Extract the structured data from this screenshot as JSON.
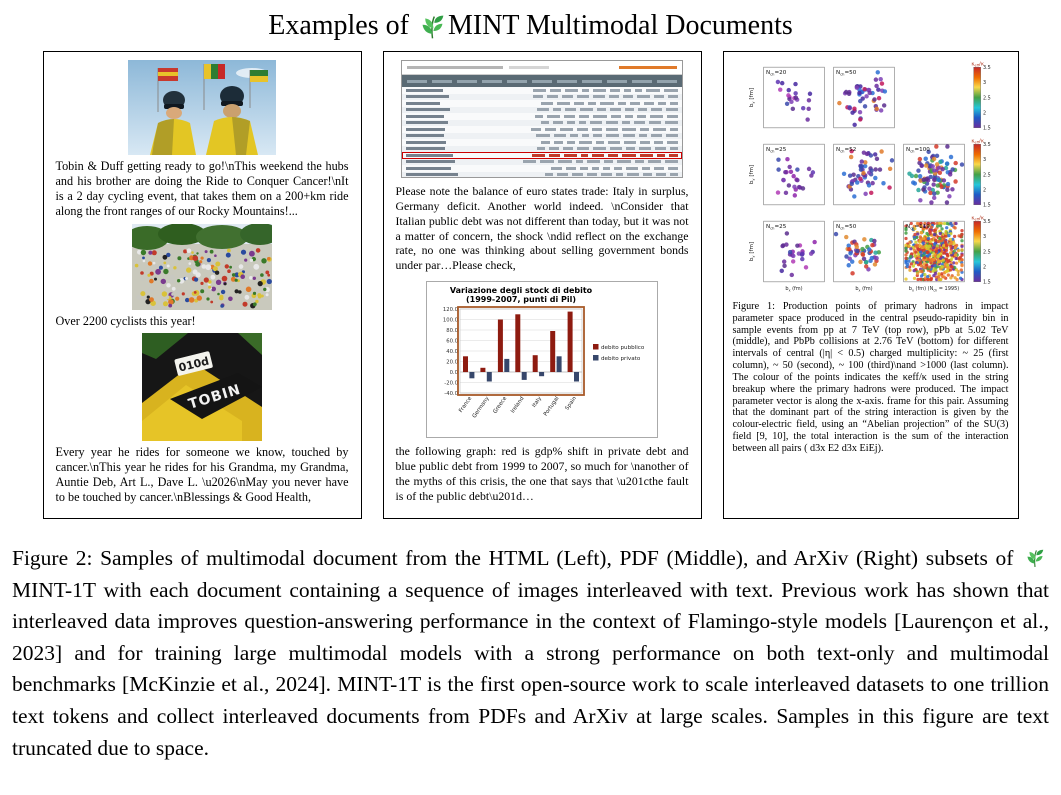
{
  "page_title": {
    "prefix": "Examples of",
    "suffix": "MINT Multimodal Documents"
  },
  "html_panel": {
    "block1": "Tobin & Duff getting ready to go!\\nThis weekend the hubs and his brother are doing the Ride to Conquer Cancer!\\nIt is a 2 day cycling event, that takes them on a 200+km ride along the front ranges of our Rocky Mountains!...",
    "block2": "Over 2200 cyclists this year!",
    "block3": "Every year he rides for someone we know, touched by cancer.\\nThis year he rides for his Grandma, my Grandma, Auntie Deb, Art L., Dave L. \\u2026\\nMay you never have to be touched by cancer.\\nBlessings & Good Health,",
    "jersey_bib": "010d",
    "jersey_name": "TOBIN"
  },
  "pdf_panel": {
    "block1": "Please note the balance of euro states trade: Italy in surplus, Germany deficit. Another world indeed. \\nConsider that Italian public debt was not different than today, but it was not a matter of concern, the shock \\ndid reflect on the exchange rate, no one was thinking about selling government bonds under par…Please check,",
    "block2": "the following graph: red is gdp% shift in private debt and blue public debt from 1999 to 2007, so much for \\nanother of the myths of this crisis, the one that says that \\u201cthe fault is of the public debt\\u201d…"
  },
  "arxiv_panel": {
    "figure_caption": "Figure 1: Production points of primary hadrons in impact parameter space produced in the central pseudo-rapidity bin in sample events from pp at 7 TeV (top row), pPb at 5.02 TeV (middle), and PbPb collisions at 2.76 TeV (bottom) for different intervals of central (|η| < 0.5) charged multiplicity: ~ 25 (first column), ~ 50 (second), ~ 100 (third)\\nand >1000 (last column). The colour of the points indicates the κeff/κ used in the string breakup where the primary hadrons were produced. The impact parameter vector is along the x-axis. frame for this pair. Assuming that the dominant part of the string interaction is given by the colour-electric field, using an “Abelian projection” of the SU(3) field [9, 10], the total interaction is the sum of the interaction between all pairs ( d3x E2 d3x EiEj)."
  },
  "figure2_caption": {
    "part1": "Figure 2: Samples of multimodal document from the HTML (Left), PDF (Middle), and ArXiv (Right) subsets of",
    "part2": "MINT-1T with each document containing a sequence of images interleaved with text. Previous work has shown that interleaved data improves question-answering performance in the context of Flamingo-style models [Laurençon et al., 2023] and for training large multimodal models with a strong performance on both text-only and multimodal benchmarks [McKinzie et al., 2024]. MINT-1T is the first open-source work to scale interleaved datasets to one trillion text tokens and collect interleaved documents from PDFs and ArXiv at large scales. Samples in this figure are text truncated due to space."
  },
  "chart_data": [
    {
      "type": "bar",
      "title": "Variazione degli stock di debito",
      "subtitle": "(1999-2007, punti di Pil)",
      "categories": [
        "France",
        "Germany",
        "Greece",
        "Ireland",
        "Italy",
        "Portugal",
        "Spain"
      ],
      "series": [
        {
          "name": "debito pubblico",
          "color": "#8e1b10",
          "values": [
            30,
            8,
            100,
            110,
            32,
            78,
            115
          ]
        },
        {
          "name": "debito privato",
          "color": "#37476b",
          "values": [
            -12,
            -18,
            25,
            -15,
            -8,
            30,
            -18
          ]
        }
      ],
      "ylim": [
        -40,
        120
      ],
      "ytick_step": 20,
      "grid": true,
      "legend_position": "right",
      "highlight_box_color": "#a85a28"
    },
    {
      "type": "scatter",
      "xlabel": "bx (fm)",
      "ylabel": "by [fm]",
      "colorbar_label": "κeff/κ",
      "colorbar_ticks": [
        "3.5",
        "3",
        "2.5",
        "2",
        "1.5"
      ],
      "colorbar_colors": [
        "#c62828",
        "#ef6c00",
        "#f9d84a",
        "#43a047",
        "#26c6da",
        "#1e5bc6",
        "#6a2d9e"
      ],
      "palettes": {
        "cool": [
          "#6a2d9e",
          "#5b2d8e",
          "#7e3fb5",
          "#4527a0",
          "#3949ab",
          "#8e24aa",
          "#5e35b1",
          "#b03ab5"
        ],
        "cool2": [
          "#6a2d9e",
          "#5b2d8e",
          "#4527a0",
          "#3949ab",
          "#7e3fb5",
          "#2b6fd4",
          "#c2185b",
          "#e07a2a"
        ],
        "mixed": [
          "#6a2d9e",
          "#5b2d8e",
          "#3949ab",
          "#2b6fd4",
          "#43a047",
          "#e08a2f",
          "#d43a2a",
          "#7e3fb5",
          "#26a69a"
        ],
        "hot": [
          "#d43a2a",
          "#e0642a",
          "#e8a62a",
          "#c9d42a",
          "#43a047",
          "#2b6fd4",
          "#6a2d9e",
          "#d43a2a",
          "#ef8535",
          "#e8c62a"
        ]
      },
      "rows": [
        {
          "subplots": [
            {
              "label": "Nch=20",
              "points": 20,
              "palette": "cool",
              "spread": 0.27
            },
            {
              "label": "Nch=50",
              "points": 50,
              "palette": "cool2",
              "spread": 0.3
            }
          ]
        },
        {
          "subplots": [
            {
              "label": "Nch=25",
              "points": 25,
              "palette": "cool",
              "spread": 0.26
            },
            {
              "label": "Nch=52",
              "points": 52,
              "palette": "cool2",
              "spread": 0.29
            },
            {
              "label": "Nch=100",
              "points": 100,
              "palette": "mixed",
              "spread": 0.32
            }
          ]
        },
        {
          "subplots": [
            {
              "label": "Nch=25",
              "points": 25,
              "palette": "cool",
              "spread": 0.26
            },
            {
              "label": "Nch=50",
              "points": 50,
              "palette": "mixed",
              "spread": 0.29
            },
            {
              "label": "Nch=119",
              "points": 650,
              "palette": "hot",
              "spread": 0.4,
              "xnote": "(Nch = 1995)"
            }
          ]
        }
      ]
    }
  ]
}
